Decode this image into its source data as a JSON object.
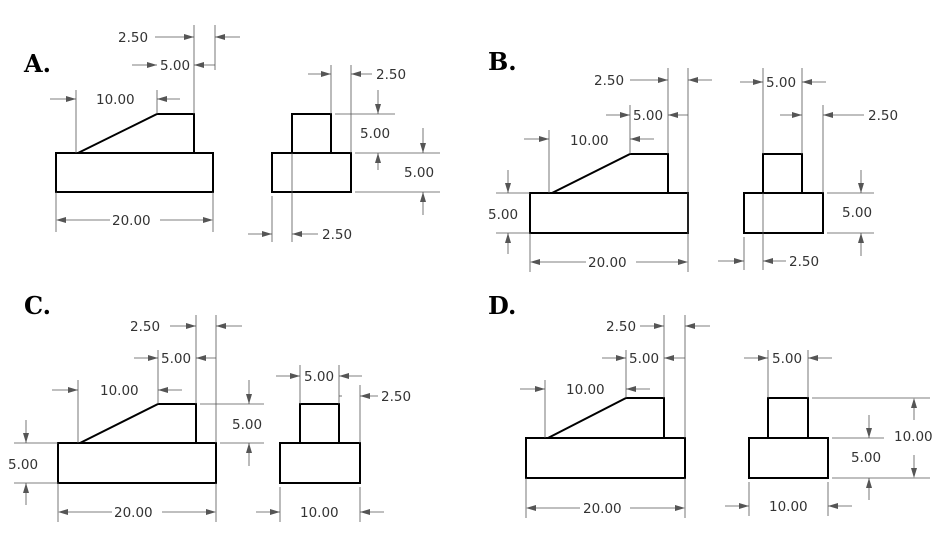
{
  "options": [
    {
      "id": "A",
      "label": "A.",
      "front": {
        "overall_length": "20.00",
        "slope_run": "10.00",
        "top_step": "5.00",
        "top_offset": "2.50"
      },
      "side": {
        "top_offset": "2.50",
        "upper_height": "5.00",
        "lower_height": "5.00",
        "bottom_offset": "2.50"
      }
    },
    {
      "id": "B",
      "label": "B.",
      "front": {
        "overall_length": "20.00",
        "slope_run": "10.00",
        "top_step": "5.00",
        "top_offset": "2.50",
        "base_height": "5.00"
      },
      "side": {
        "top_width": "5.00",
        "right_offset": "2.50",
        "height": "5.00",
        "bottom_offset": "2.50"
      }
    },
    {
      "id": "C",
      "label": "C.",
      "front": {
        "overall_length": "20.00",
        "slope_run": "10.00",
        "top_step": "5.00",
        "top_offset": "2.50",
        "base_height": "5.00",
        "upper_height": "5.00"
      },
      "side": {
        "top_width": "5.00",
        "right_offset": "2.50",
        "overall_width": "10.00"
      }
    },
    {
      "id": "D",
      "label": "D.",
      "front": {
        "overall_length": "20.00",
        "slope_run": "10.00",
        "top_step": "5.00",
        "top_offset": "2.50"
      },
      "side": {
        "top_width": "5.00",
        "overall_height": "10.00",
        "lower_height": "5.00",
        "overall_width": "10.00"
      }
    }
  ]
}
